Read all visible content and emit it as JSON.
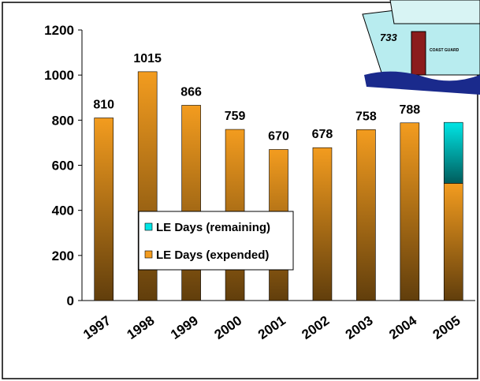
{
  "chart_data": {
    "type": "stacked_bar",
    "categories": [
      "1997",
      "1998",
      "1999",
      "2000",
      "2001",
      "2002",
      "2003",
      "2004",
      "2005"
    ],
    "series": [
      {
        "name": "LE Days (expended)",
        "color": "#f39c1f",
        "values": [
          810,
          1015,
          866,
          759,
          670,
          678,
          758,
          788,
          520
        ],
        "value_labels": [
          "810",
          "1015",
          "866",
          "759",
          "670",
          "678",
          "758",
          "788",
          null
        ]
      },
      {
        "name": "LE Days (remaining)",
        "color": "#00e5e5",
        "values": [
          null,
          null,
          null,
          null,
          null,
          null,
          null,
          null,
          270
        ]
      }
    ],
    "ylim": [
      0,
      1200
    ],
    "yticks": [
      0,
      200,
      400,
      600,
      800,
      1000,
      1200
    ],
    "grid": false,
    "legend": "center-left"
  },
  "decoration": {
    "ship_labels": [
      "733",
      "COAST GUARD"
    ]
  }
}
